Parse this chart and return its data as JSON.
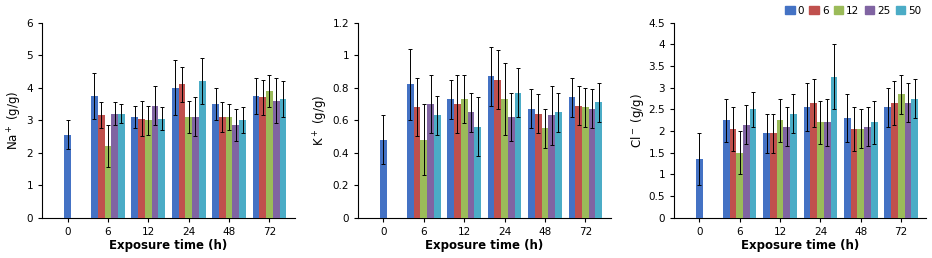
{
  "legend_labels": [
    "0",
    "6",
    "12",
    "25",
    "50"
  ],
  "bar_colors": [
    "#4472C4",
    "#C0504D",
    "#9BBB59",
    "#8064A2",
    "#4BACC6"
  ],
  "time_labels": [
    "0",
    "6",
    "12",
    "24",
    "48",
    "72"
  ],
  "na_values": [
    [
      2.55,
      0,
      0,
      0,
      0
    ],
    [
      3.75,
      3.15,
      2.2,
      3.2,
      3.2
    ],
    [
      3.1,
      3.05,
      3.0,
      3.45,
      3.05
    ],
    [
      4.0,
      4.1,
      3.1,
      3.1,
      4.2
    ],
    [
      3.5,
      3.1,
      3.1,
      2.85,
      3.0
    ],
    [
      3.75,
      3.7,
      3.9,
      3.6,
      3.65
    ]
  ],
  "na_errors": [
    [
      0.45,
      0,
      0,
      0,
      0
    ],
    [
      0.7,
      0.4,
      0.65,
      0.35,
      0.3
    ],
    [
      0.35,
      0.55,
      0.45,
      0.6,
      0.35
    ],
    [
      0.85,
      0.55,
      0.5,
      0.6,
      0.7
    ],
    [
      0.5,
      0.45,
      0.4,
      0.5,
      0.4
    ],
    [
      0.55,
      0.55,
      0.5,
      0.7,
      0.55
    ]
  ],
  "k_values": [
    [
      0.48,
      0,
      0,
      0,
      0
    ],
    [
      0.82,
      0.68,
      0.48,
      0.7,
      0.63
    ],
    [
      0.73,
      0.7,
      0.73,
      0.65,
      0.56
    ],
    [
      0.87,
      0.85,
      0.73,
      0.62,
      0.77
    ],
    [
      0.67,
      0.64,
      0.55,
      0.63,
      0.65
    ],
    [
      0.74,
      0.69,
      0.68,
      0.67,
      0.71
    ]
  ],
  "k_errors": [
    [
      0.15,
      0,
      0,
      0,
      0
    ],
    [
      0.22,
      0.18,
      0.22,
      0.18,
      0.12
    ],
    [
      0.12,
      0.18,
      0.15,
      0.12,
      0.18
    ],
    [
      0.18,
      0.18,
      0.22,
      0.15,
      0.15
    ],
    [
      0.12,
      0.12,
      0.12,
      0.18,
      0.12
    ],
    [
      0.12,
      0.12,
      0.12,
      0.12,
      0.12
    ]
  ],
  "cl_values": [
    [
      1.35,
      0,
      0,
      0,
      0
    ],
    [
      2.25,
      2.05,
      1.5,
      2.15,
      2.5
    ],
    [
      1.95,
      1.95,
      2.25,
      2.1,
      2.4
    ],
    [
      2.55,
      2.65,
      2.2,
      2.2,
      3.25
    ],
    [
      2.3,
      2.05,
      2.05,
      2.1,
      2.2
    ],
    [
      2.55,
      2.65,
      2.85,
      2.65,
      2.75
    ]
  ],
  "cl_errors": [
    [
      0.6,
      0,
      0,
      0,
      0
    ],
    [
      0.5,
      0.5,
      0.5,
      0.45,
      0.4
    ],
    [
      0.45,
      0.45,
      0.5,
      0.45,
      0.45
    ],
    [
      0.55,
      0.55,
      0.5,
      0.55,
      0.75
    ],
    [
      0.55,
      0.5,
      0.45,
      0.45,
      0.5
    ],
    [
      0.45,
      0.5,
      0.45,
      0.45,
      0.45
    ]
  ],
  "na_ylabel": "Na$^+$ (g/g)",
  "k_ylabel": "K$^+$ (g/g)",
  "cl_ylabel": "Cl$^-$ (g/g)",
  "xlabel": "Exposure time (h)",
  "na_ylim": [
    0,
    6
  ],
  "k_ylim": [
    0.0,
    1.2
  ],
  "cl_ylim": [
    0.0,
    4.5
  ],
  "na_yticks": [
    0,
    1,
    2,
    3,
    4,
    5,
    6
  ],
  "k_yticks": [
    0.0,
    0.2,
    0.4,
    0.6,
    0.8,
    1.0,
    1.2
  ],
  "cl_yticks": [
    0.0,
    0.5,
    1.0,
    1.5,
    2.0,
    2.5,
    3.0,
    3.5,
    4.0,
    4.5
  ]
}
